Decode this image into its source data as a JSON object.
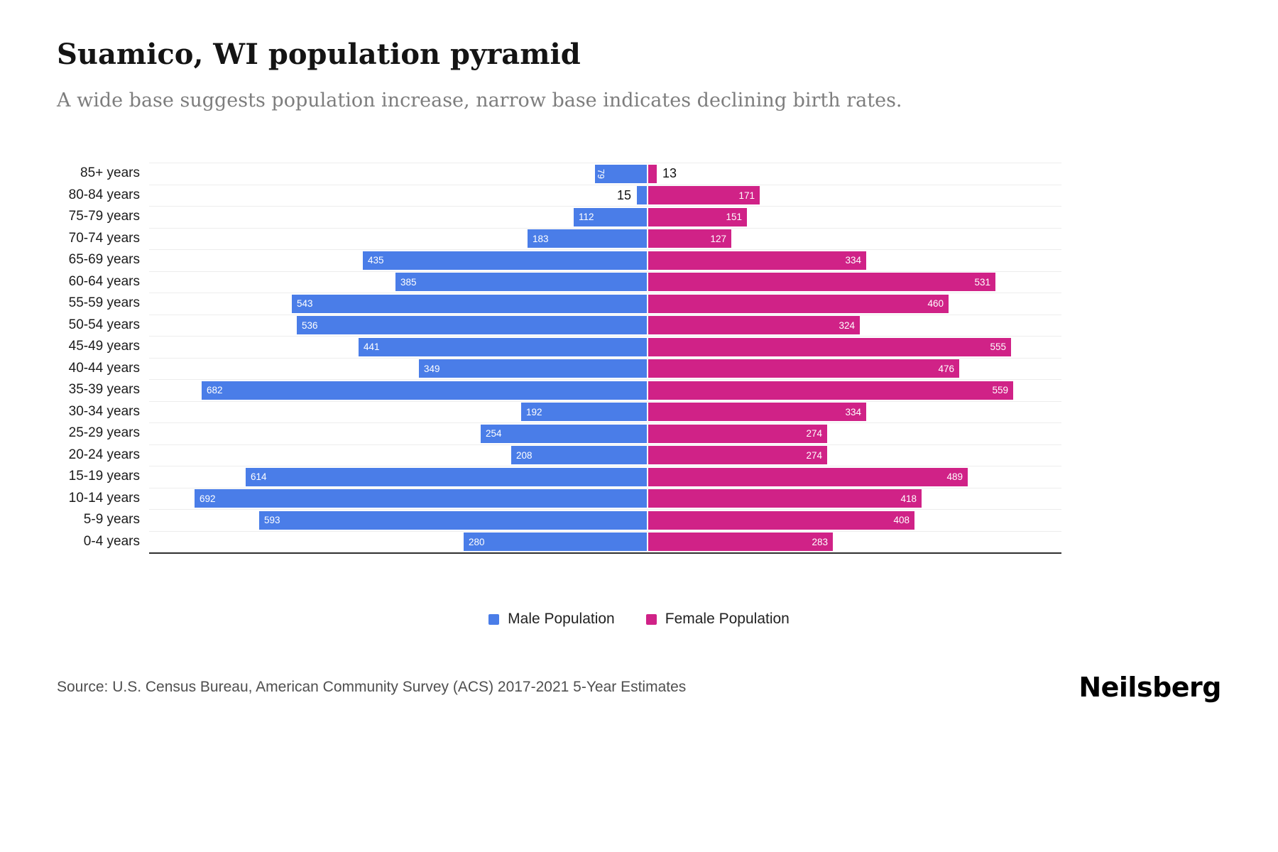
{
  "header": {
    "title": "Suamico, WI population pyramid",
    "subtitle": "A wide base suggests population increase, narrow base indicates declining birth rates."
  },
  "chart_data": {
    "type": "bar",
    "variant": "population-pyramid",
    "orientation": "horizontal",
    "grid": true,
    "legend_position": "bottom",
    "categories": [
      "85+ years",
      "80-84 years",
      "75-79 years",
      "70-74 years",
      "65-69 years",
      "60-64 years",
      "55-59 years",
      "50-54 years",
      "45-49 years",
      "40-44 years",
      "35-39 years",
      "30-34 years",
      "25-29 years",
      "20-24 years",
      "15-19 years",
      "10-14 years",
      "5-9 years",
      "0-4 years"
    ],
    "series": [
      {
        "name": "Male Population",
        "color": "#4a7de8",
        "values": [
          79,
          15,
          112,
          183,
          435,
          385,
          543,
          536,
          441,
          349,
          682,
          192,
          254,
          208,
          614,
          692,
          593,
          280
        ]
      },
      {
        "name": "Female Population",
        "color": "#d02287",
        "values": [
          13,
          171,
          151,
          127,
          334,
          531,
          460,
          324,
          555,
          476,
          559,
          334,
          274,
          274,
          489,
          418,
          408,
          283
        ]
      }
    ],
    "axis": {
      "male_max": 692,
      "female_max": 559,
      "center_value": 0
    }
  },
  "footer": {
    "source": "Source: U.S. Census Bureau, American Community Survey (ACS) 2017-2021 5-Year Estimates",
    "brand": "Neilsberg"
  }
}
